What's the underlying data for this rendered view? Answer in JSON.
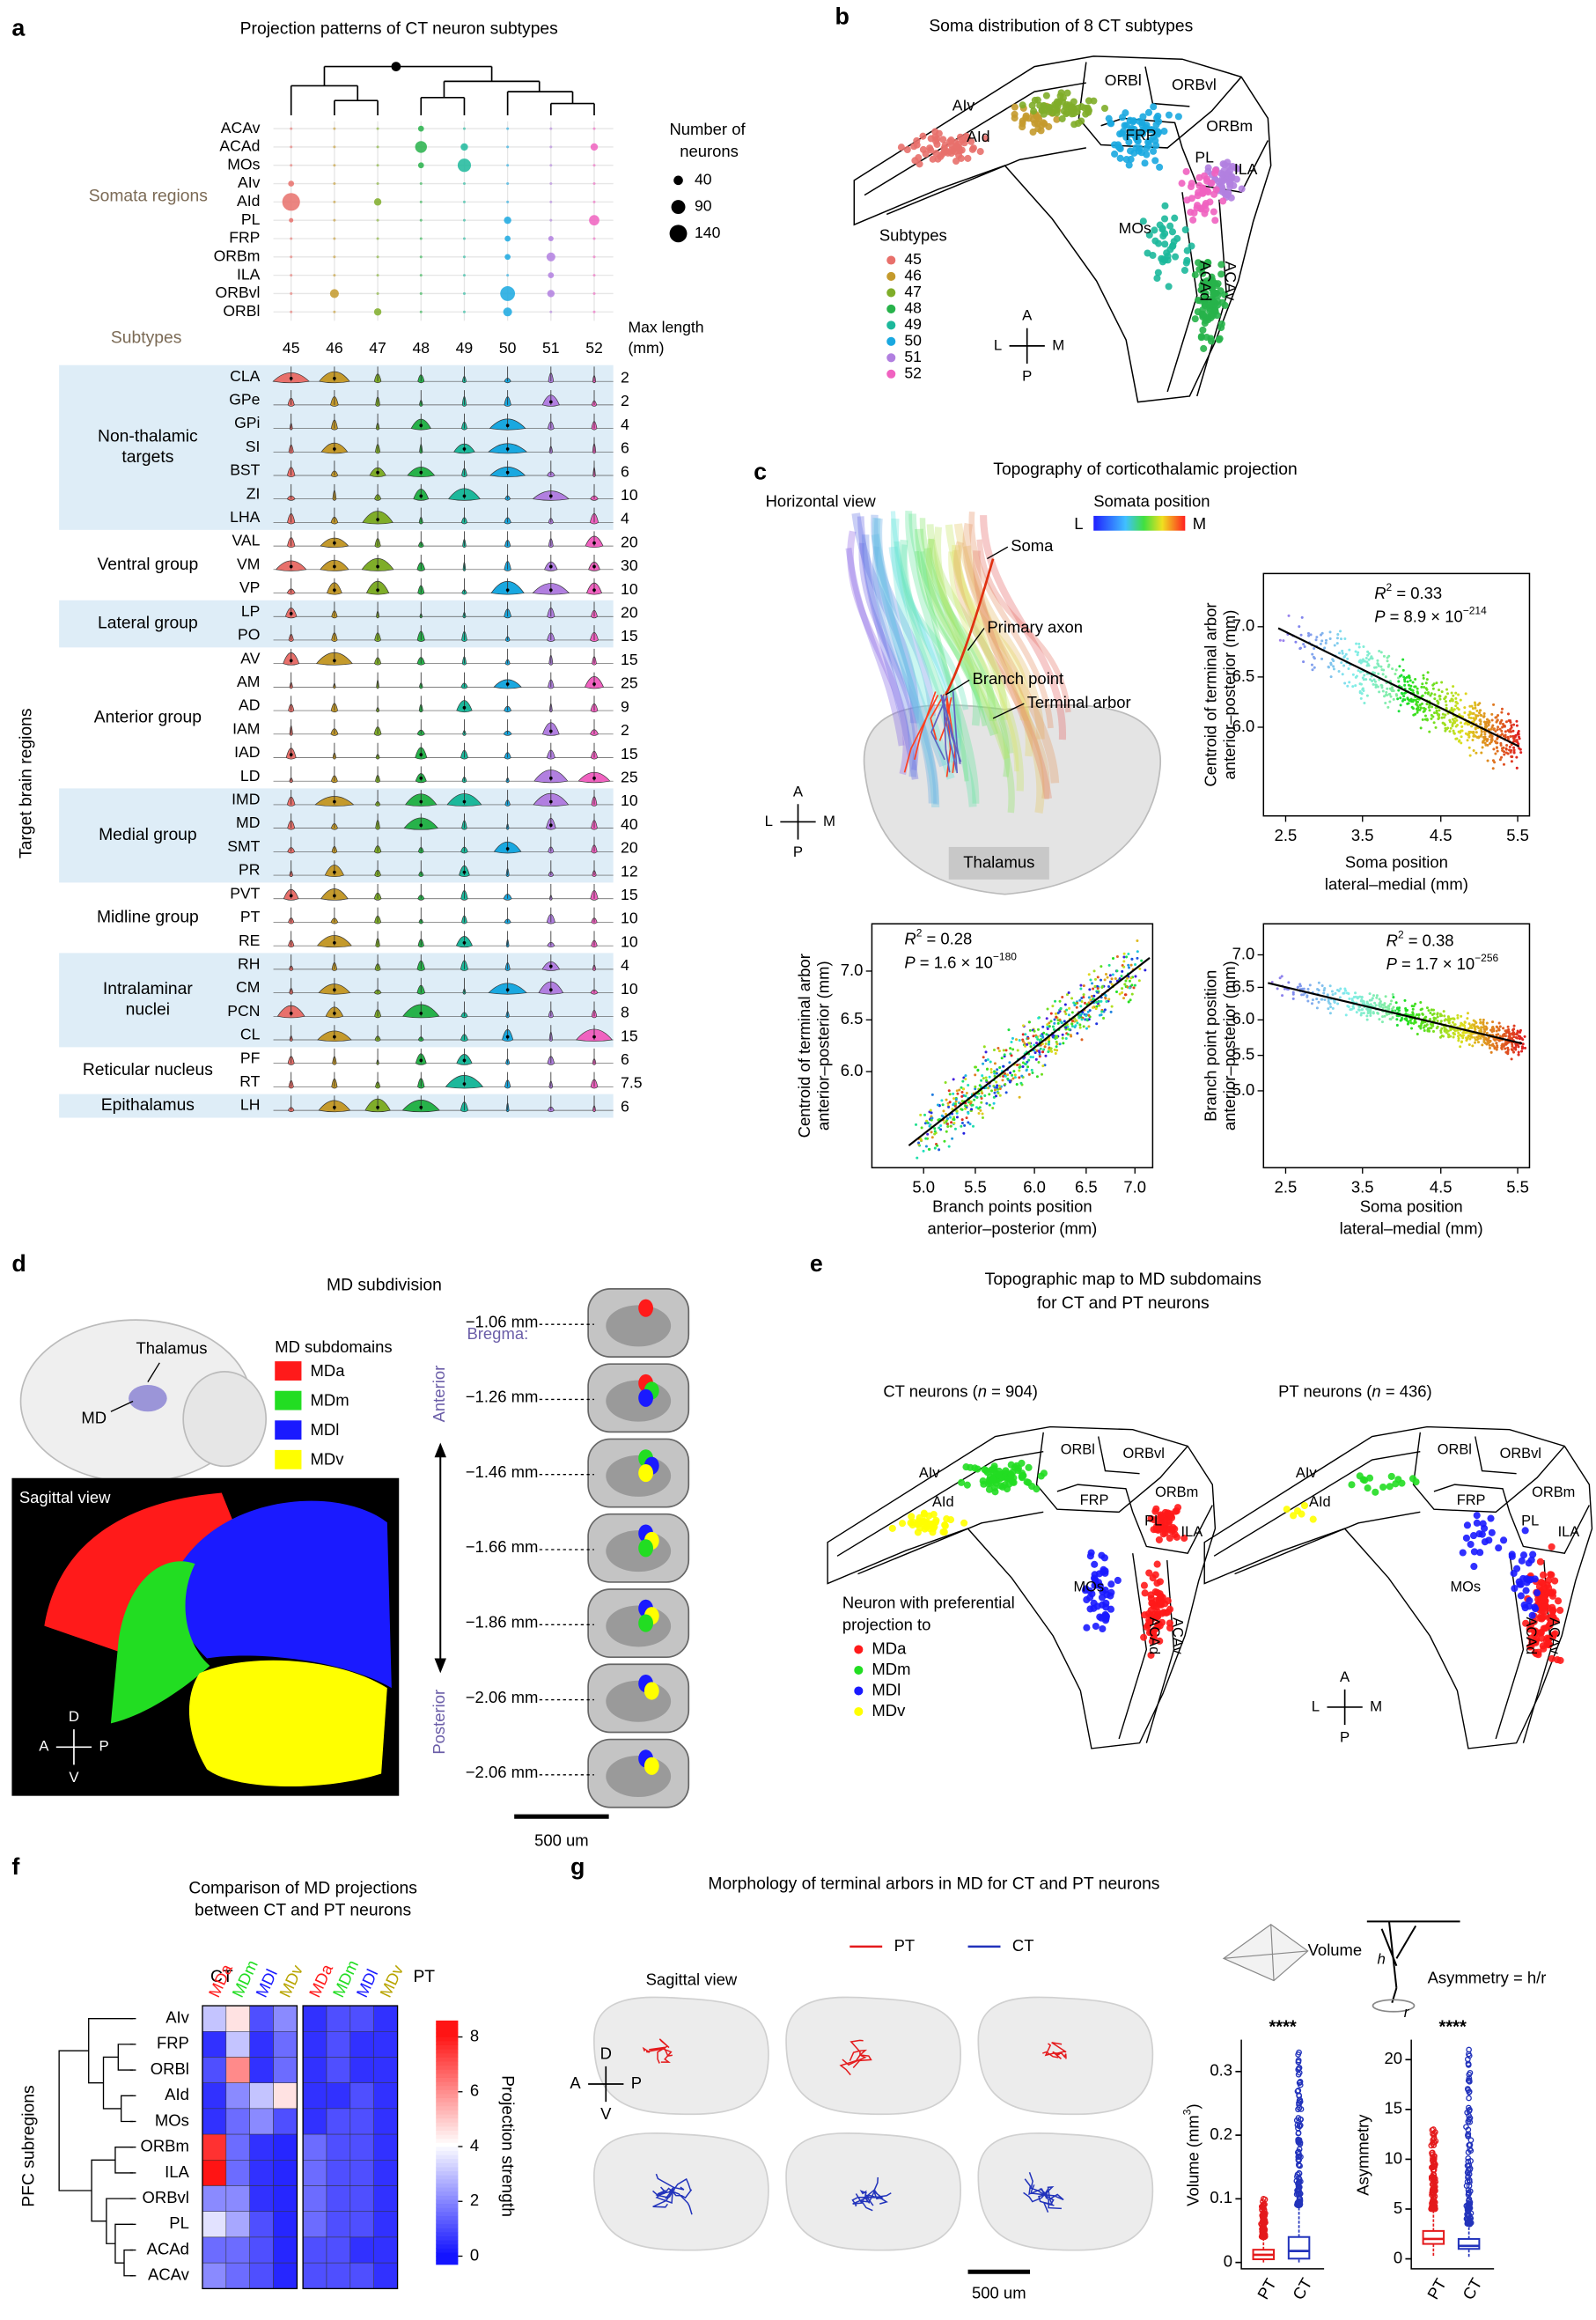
{
  "a": {
    "letter": "a",
    "title": "Projection patterns of CT neuron subtypes",
    "somata_label": "Somata regions",
    "somata_regions": [
      "ACAv",
      "ACAd",
      "MOs",
      "AIv",
      "AId",
      "PL",
      "FRP",
      "ORBm",
      "ILA",
      "ORBvl",
      "ORBl"
    ],
    "legend_title": [
      "Number of",
      "neurons"
    ],
    "legend_sizes": [
      40,
      90,
      140
    ],
    "subtypes_label": "Subtypes",
    "subtypes": [
      "45",
      "46",
      "47",
      "48",
      "49",
      "50",
      "51",
      "52"
    ],
    "subtype_colors": [
      "#e8706b",
      "#c49a2c",
      "#7fad29",
      "#27b24a",
      "#1cb89b",
      "#19a8e0",
      "#b17fe0",
      "#f062c0"
    ],
    "max_length_label": [
      "Max length",
      "(mm)"
    ],
    "y_axis_label": "Target brain regions",
    "groups": [
      {
        "name": [
          "Non-thalamic",
          "targets"
        ],
        "shaded": true,
        "regions": [
          "CLA",
          "GPe",
          "GPi",
          "SI",
          "BST",
          "ZI",
          "LHA"
        ],
        "max_length": [
          "2",
          "2",
          "4",
          "6",
          "6",
          "10",
          "4"
        ]
      },
      {
        "name": [
          "Ventral group"
        ],
        "shaded": false,
        "regions": [
          "VAL",
          "VM",
          "VP"
        ],
        "max_length": [
          "20",
          "30",
          "10"
        ]
      },
      {
        "name": [
          "Lateral group"
        ],
        "shaded": true,
        "regions": [
          "LP",
          "PO"
        ],
        "max_length": [
          "20",
          "15"
        ]
      },
      {
        "name": [
          "Anterior group"
        ],
        "shaded": false,
        "regions": [
          "AV",
          "AM",
          "AD",
          "IAM",
          "IAD",
          "LD"
        ],
        "max_length": [
          "15",
          "25",
          "9",
          "2",
          "15",
          "25"
        ]
      },
      {
        "name": [
          "Medial group"
        ],
        "shaded": true,
        "regions": [
          "IMD",
          "MD",
          "SMT",
          "PR"
        ],
        "max_length": [
          "10",
          "40",
          "20",
          "12"
        ]
      },
      {
        "name": [
          "Midline group"
        ],
        "shaded": false,
        "regions": [
          "PVT",
          "PT",
          "RE"
        ],
        "max_length": [
          "15",
          "10",
          "10"
        ]
      },
      {
        "name": [
          "Intralaminar",
          "nuclei"
        ],
        "shaded": true,
        "regions": [
          "RH",
          "CM",
          "PCN",
          "CL"
        ],
        "max_length": [
          "4",
          "10",
          "8",
          "15"
        ]
      },
      {
        "name": [
          "Reticular nucleus"
        ],
        "shaded": false,
        "regions": [
          "PF",
          "RT"
        ],
        "max_length": [
          "6",
          "7.5"
        ]
      },
      {
        "name": [
          "Epithalamus"
        ],
        "shaded": true,
        "regions": [
          "LH"
        ],
        "max_length": [
          "6"
        ]
      }
    ]
  },
  "b": {
    "letter": "b",
    "title": "Soma distribution of 8 CT subtypes",
    "region_labels": [
      "AIv",
      "AId",
      "ORBl",
      "ORBvl",
      "ORBm",
      "FRP",
      "PL",
      "ILA",
      "MOs",
      "ACAd",
      "ACAv"
    ],
    "legend_title": "Subtypes",
    "subtypes": [
      "45",
      "46",
      "47",
      "48",
      "49",
      "50",
      "51",
      "52"
    ],
    "compass": {
      "up": "A",
      "down": "P",
      "left": "L",
      "right": "M"
    }
  },
  "c": {
    "letter": "c",
    "title": "Topography of corticothalamic projection",
    "view": "Horizontal view",
    "somata_position": "Somata position",
    "gradient_left": "L",
    "gradient_right": "M",
    "annotations": [
      "Soma",
      "Primary axon",
      "Branch point",
      "Terminal arbor"
    ],
    "thalamus": "Thalamus",
    "compass": {
      "up": "A",
      "down": "P",
      "left": "L",
      "right": "M"
    },
    "plots": [
      {
        "r2": [
          "R",
          "2",
          " = 0.33"
        ],
        "p": [
          "P",
          " = 8.9 × 10",
          "−214"
        ],
        "ylabel": [
          "Centroid of terminal arbor",
          "anterior–posterior (mm)"
        ],
        "xlabel": [
          "Soma position",
          "lateral–medial (mm)"
        ],
        "yticks": [
          "6.0",
          "6.5",
          "7.0"
        ],
        "xticks": [
          "2.5",
          "3.5",
          "4.5",
          "5.5"
        ]
      },
      {
        "r2": [
          "R",
          "2",
          " = 0.28"
        ],
        "p": [
          "P",
          " = 1.6 × 10",
          "−180"
        ],
        "ylabel": [
          "Centroid of terminal arbor",
          "anterior–posterior (mm)"
        ],
        "xlabel": [
          "Branch points position",
          "anterior–posterior (mm)"
        ],
        "yticks": [
          "6.0",
          "6.5",
          "7.0"
        ],
        "xticks": [
          "5.0",
          "5.5",
          "6.0",
          "6.5",
          "7.0"
        ]
      },
      {
        "r2": [
          "R",
          "2",
          " = 0.38"
        ],
        "p": [
          "P",
          " = 1.7 × 10",
          "−256"
        ],
        "ylabel": [
          "Branch point position",
          "anterior–posterior (mm)"
        ],
        "xlabel": [
          "Soma position",
          "lateral–medial (mm)"
        ],
        "yticks": [
          "5.0",
          "5.5",
          "6.0",
          "6.5",
          "7.0"
        ],
        "xticks": [
          "2.5",
          "3.5",
          "4.5",
          "5.5"
        ]
      }
    ]
  },
  "d": {
    "letter": "d",
    "title": "MD subdivision",
    "thalamus": "Thalamus",
    "md": "MD",
    "legend_title": "MD subdomains",
    "subdomains": [
      {
        "name": "MDa",
        "color": "#ff1a1a"
      },
      {
        "name": "MDm",
        "color": "#22dd22"
      },
      {
        "name": "MDl",
        "color": "#1a1aff"
      },
      {
        "name": "MDv",
        "color": "#ffff00"
      }
    ],
    "sagittal_view": "Sagittal view",
    "compass": {
      "up": "D",
      "down": "V",
      "left": "A",
      "right": "P"
    },
    "bregma": "Bregma:",
    "levels": [
      "−1.06 mm",
      "−1.26 mm",
      "−1.46 mm",
      "−1.66 mm",
      "−1.86 mm",
      "−2.06 mm",
      "−2.06 mm"
    ],
    "anterior": "Anterior",
    "posterior": "Posterior",
    "scale_bar": "500 um"
  },
  "e": {
    "letter": "e",
    "title": [
      "Topographic map to MD subdomains",
      "for CT and PT neurons"
    ],
    "ct_label": [
      "CT neurons (",
      "n",
      " = 904)"
    ],
    "pt_label": [
      "PT neurons (",
      "n",
      " = 436)"
    ],
    "region_labels": [
      "AIv",
      "AId",
      "ORBl",
      "ORBvl",
      "ORBm",
      "FRP",
      "PL",
      "ILA",
      "MOs",
      "ACAd",
      "ACAv"
    ],
    "legend_title": [
      "Neuron with preferential",
      "projection to"
    ],
    "compass": {
      "up": "A",
      "down": "P",
      "left": "L",
      "right": "M"
    }
  },
  "f": {
    "letter": "f",
    "title": [
      "Comparison of MD projections",
      "between CT and PT neurons"
    ],
    "ct": "CT",
    "pt": "PT",
    "rows": [
      "AIv",
      "FRP",
      "ORBl",
      "AId",
      "MOs",
      "ORBm",
      "ILA",
      "ORBvl",
      "PL",
      "ACAd",
      "ACAv"
    ],
    "row_axis_label": "PFC subregions",
    "ct_values": [
      [
        3,
        4.5,
        1,
        2
      ],
      [
        0.5,
        3,
        0.5,
        1.5
      ],
      [
        1,
        6,
        0.5,
        1.5
      ],
      [
        0.5,
        2,
        3,
        4.5
      ],
      [
        0.5,
        1.5,
        2,
        1
      ],
      [
        7.5,
        1.5,
        0.5,
        0.3
      ],
      [
        8,
        1.5,
        0.5,
        0.3
      ],
      [
        2,
        2,
        0.5,
        0.3
      ],
      [
        3.5,
        2.5,
        1,
        0.3
      ],
      [
        1.5,
        1.5,
        1,
        0.3
      ],
      [
        2,
        1.5,
        1,
        0.3
      ]
    ],
    "pt_values": [
      [
        0.5,
        1,
        1,
        0.5
      ],
      [
        0.5,
        1,
        0.5,
        0.5
      ],
      [
        0.5,
        1,
        0.5,
        0.5
      ],
      [
        0.5,
        0.5,
        1,
        0.5
      ],
      [
        0.5,
        1,
        1,
        0.5
      ],
      [
        1.5,
        1,
        1,
        0.5
      ],
      [
        1.5,
        1,
        1,
        0.5
      ],
      [
        1.5,
        1,
        1,
        0.5
      ],
      [
        1.5,
        1,
        1,
        0.5
      ],
      [
        1,
        1,
        0.5,
        0.5
      ],
      [
        1,
        1,
        1,
        0.5
      ]
    ],
    "colorbar_lim": [
      -0.3,
      8.6
    ],
    "colorbar_ticks": [
      0,
      2,
      4,
      6,
      8
    ],
    "colorbar_label": "Projection strength"
  },
  "g": {
    "letter": "g",
    "title": "Morphology of terminal arbors in MD for CT and PT neurons",
    "series": [
      {
        "name": "PT",
        "color": "#e41a1c"
      },
      {
        "name": "CT",
        "color": "#2233bb"
      }
    ],
    "sagittal_view": "Sagittal view",
    "compass": {
      "up": "D",
      "down": "V",
      "left": "A",
      "right": "P"
    },
    "scale_bar": "500 um",
    "volume_icon": "Volume",
    "asymmetry_icon": "Asymmetry = h/r",
    "h": "h",
    "r": "r",
    "boxplots": [
      {
        "ylabel": [
          "Volume (mm",
          "3",
          ")"
        ],
        "significance": "****",
        "ylim": [
          -0.01,
          0.35
        ],
        "yticks": [
          0,
          0.1,
          0.2,
          0.3
        ],
        "boxes": [
          {
            "q1": 0.005,
            "median": 0.012,
            "q3": 0.02,
            "low": 0,
            "high": 0.04,
            "max": 0.1
          },
          {
            "q1": 0.006,
            "median": 0.018,
            "q3": 0.04,
            "low": 0,
            "high": 0.09,
            "max": 0.33
          }
        ]
      },
      {
        "ylabel": [
          "Asymmetry"
        ],
        "significance": "****",
        "ylim": [
          -1,
          22
        ],
        "yticks": [
          0,
          5,
          10,
          15,
          20
        ],
        "boxes": [
          {
            "q1": 1.5,
            "median": 2,
            "q3": 2.8,
            "low": 0.3,
            "high": 5,
            "max": 13
          },
          {
            "q1": 1,
            "median": 1.3,
            "q3": 2,
            "low": 0.2,
            "high": 3.5,
            "max": 21
          }
        ]
      }
    ]
  }
}
